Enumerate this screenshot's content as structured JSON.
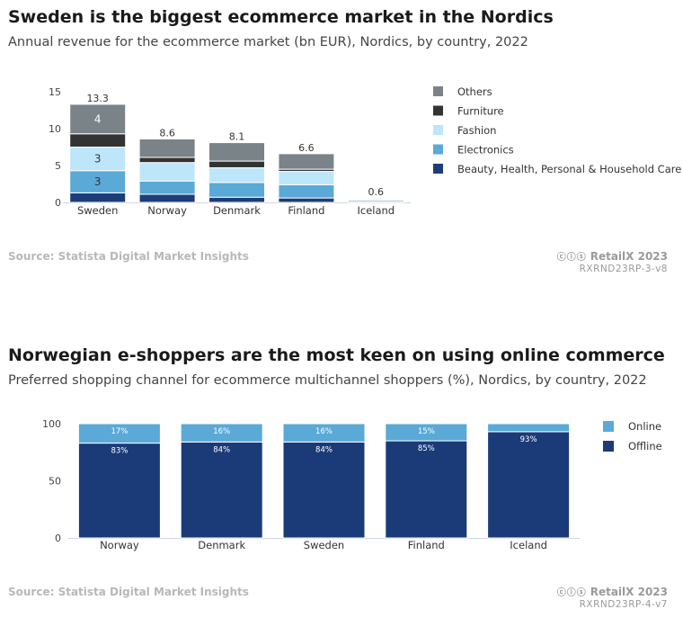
{
  "chart_data": [
    {
      "type": "bar",
      "stacked": true,
      "title": "Sweden is the biggest ecommerce market in the Nordics",
      "subtitle": "Annual revenue for the ecommerce market (bn EUR), Nordics, by country, 2022",
      "categories": [
        "Sweden",
        "Norway",
        "Denmark",
        "Finland",
        "Iceland"
      ],
      "series": [
        {
          "name": "Beauty, Health, Personal & Household Care",
          "color": "#1d3d7a",
          "values": [
            1.3,
            1.1,
            0.7,
            0.6,
            0.1
          ]
        },
        {
          "name": "Electronics",
          "color": "#5aa9d6",
          "values": [
            3,
            1.8,
            2.0,
            1.8,
            0.2
          ]
        },
        {
          "name": "Fashion",
          "color": "#bde6fb",
          "values": [
            3.2,
            2.5,
            2.0,
            1.8,
            0.1
          ]
        },
        {
          "name": "Furniture",
          "color": "#333333",
          "values": [
            1.8,
            0.7,
            0.9,
            0.3,
            0.1
          ]
        },
        {
          "name": "Others",
          "color": "#7a8388",
          "values": [
            4,
            2.5,
            2.5,
            2.1,
            0.1
          ]
        }
      ],
      "segment_labels": [
        {
          "category": "Sweden",
          "series": "Others",
          "text": "4"
        },
        {
          "category": "Sweden",
          "series": "Fashion",
          "text": "3"
        },
        {
          "category": "Sweden",
          "series": "Electronics",
          "text": "3"
        }
      ],
      "totals": [
        "13.3",
        "8.6",
        "8.1",
        "6.6",
        "0.6"
      ],
      "ylim": [
        0,
        15
      ],
      "yticks": [
        "0",
        "5",
        "10",
        "15"
      ],
      "legend_position": "right",
      "source": "Source: Statista Digital Market Insights",
      "brand": "RetailX 2023",
      "code": "RXRND23RP-3-v8"
    },
    {
      "type": "bar",
      "stacked": true,
      "title": "Norwegian e-shoppers are the most keen on using online commerce",
      "subtitle": "Preferred shopping channel for ecommerce multichannel shoppers (%), Nordics, by country, 2022",
      "categories": [
        "Norway",
        "Denmark",
        "Sweden",
        "Finland",
        "Iceland"
      ],
      "series": [
        {
          "name": "Offline",
          "color": "#1b3b78",
          "values": [
            83,
            84,
            84,
            85,
            93
          ],
          "labels": [
            "83%",
            "84%",
            "84%",
            "85%",
            "93%"
          ]
        },
        {
          "name": "Online",
          "color": "#5aa9d6",
          "values": [
            17,
            16,
            16,
            15,
            7
          ],
          "labels": [
            "17%",
            "16%",
            "16%",
            "15%",
            ""
          ]
        }
      ],
      "legend_order": [
        "Online",
        "Offline"
      ],
      "ylim": [
        0,
        100
      ],
      "yticks": [
        "0",
        "50",
        "100"
      ],
      "legend_position": "right",
      "source": "Source: Statista Digital Market Insights",
      "brand": "RetailX 2023",
      "code": "RXRND23RP-4-v7"
    }
  ]
}
